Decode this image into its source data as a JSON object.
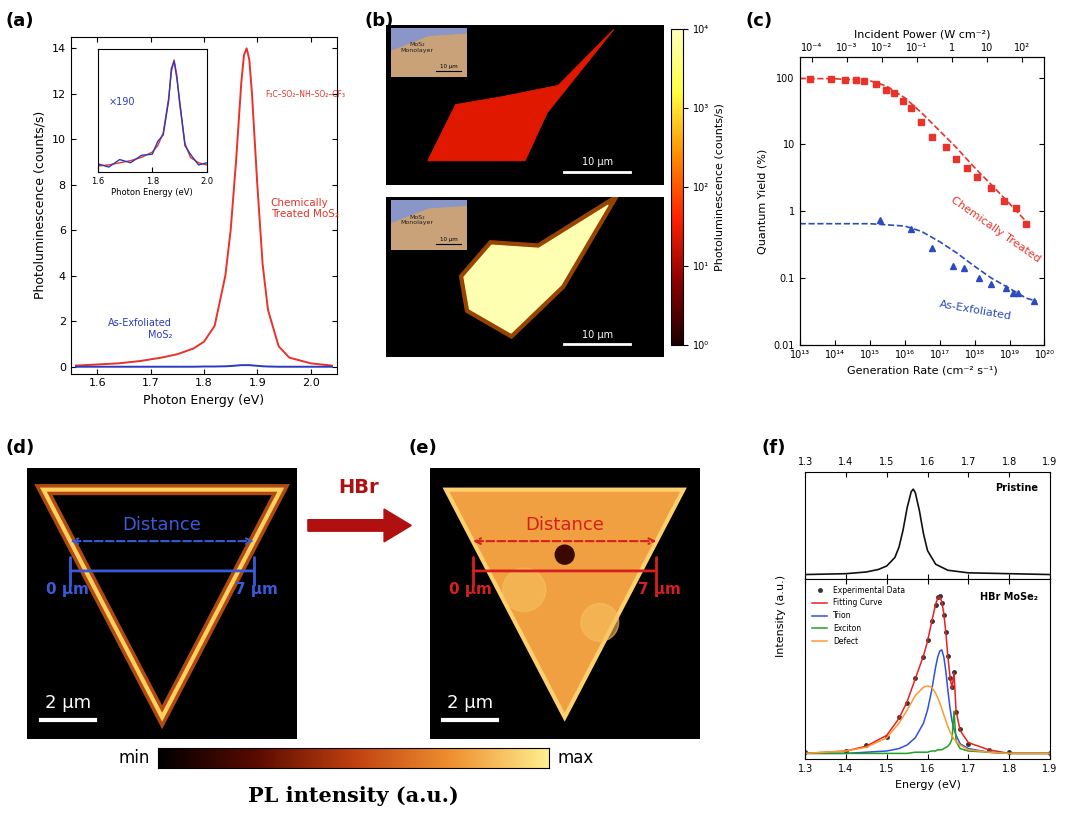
{
  "chart_data": [
    {
      "type": "line",
      "title": "(a)",
      "xlabel": "Photon Energy (eV)",
      "ylabel": "Photoluminescence (counts/s)",
      "x": [
        1.56,
        1.6,
        1.64,
        1.68,
        1.72,
        1.75,
        1.78,
        1.8,
        1.82,
        1.84,
        1.85,
        1.86,
        1.87,
        1.875,
        1.88,
        1.885,
        1.89,
        1.9,
        1.91,
        1.92,
        1.94,
        1.96,
        2.0,
        2.04
      ],
      "series": [
        {
          "name": "Chemically\nTreated MoS₂",
          "color": "#e8322a",
          "values": [
            0.05,
            0.1,
            0.15,
            0.25,
            0.4,
            0.55,
            0.8,
            1.1,
            1.8,
            4.0,
            6.0,
            9.0,
            12.5,
            13.7,
            14.0,
            13.5,
            12.0,
            8.0,
            4.5,
            2.5,
            0.9,
            0.4,
            0.15,
            0.05
          ]
        },
        {
          "name": "As-Exfoliated\nMoS₂",
          "color": "#2b3bbf",
          "values": [
            0.0,
            0.0,
            0.0,
            0.0,
            0.0,
            0.0,
            0.0,
            0.01,
            0.01,
            0.02,
            0.03,
            0.05,
            0.07,
            0.07,
            0.07,
            0.07,
            0.06,
            0.04,
            0.02,
            0.01,
            0.0,
            0.0,
            0.0,
            0.0
          ]
        }
      ],
      "annotations": [
        "F₃C–SO₂–NH–SO₂–CF₃"
      ],
      "xlim": [
        1.55,
        2.05
      ],
      "xticks": [
        1.6,
        1.7,
        1.8,
        1.9,
        2.0
      ],
      "ylim": [
        -0.3,
        14.5
      ],
      "yticks": [
        0,
        2,
        4,
        6,
        8,
        10,
        12,
        14
      ]
    },
    {
      "type": "line",
      "xlabel": "Photon Energy (eV)",
      "x": [
        1.6,
        1.64,
        1.68,
        1.72,
        1.76,
        1.8,
        1.82,
        1.84,
        1.86,
        1.87,
        1.88,
        1.89,
        1.9,
        1.92,
        1.94,
        1.97,
        2.0
      ],
      "series": [
        {
          "color": "#e8322a",
          "values": [
            0.01,
            0.02,
            0.04,
            0.06,
            0.09,
            0.14,
            0.2,
            0.32,
            0.64,
            0.89,
            1.0,
            0.86,
            0.6,
            0.22,
            0.09,
            0.04,
            0.02
          ]
        },
        {
          "color": "#2b3bbf",
          "values": [
            0.03,
            0.0,
            0.07,
            0.04,
            0.11,
            0.12,
            0.24,
            0.3,
            0.62,
            0.92,
            0.99,
            0.83,
            0.63,
            0.2,
            0.12,
            0.02,
            0.04
          ]
        }
      ],
      "annotations": [
        "×190"
      ],
      "xlim": [
        1.6,
        2.0
      ],
      "xticks": [
        1.6,
        1.8,
        2.0
      ],
      "ylim": [
        -0.05,
        1.1
      ],
      "tick_labels": "x"
    },
    {
      "type": "image_map",
      "title": "(b)",
      "colorbar": {
        "label": "Photoluminescence (counts/s)",
        "log": true,
        "lim": [
          1,
          10000
        ],
        "ticks": [
          {
            "value": 1,
            "label": "10⁰"
          },
          {
            "value": 10,
            "label": "10¹"
          },
          {
            "value": 100,
            "label": "10²"
          },
          {
            "value": 1000,
            "label": "10³"
          },
          {
            "value": 10000,
            "label": "10⁴"
          }
        ]
      },
      "images": [
        {
          "value": 25,
          "scale_bar": "10 µm",
          "inset_label": "MoS₂\nMonolayer",
          "inset_scale_bar": "10 µm"
        },
        {
          "value": 8000,
          "scale_bar": "10 µm",
          "inset_label": "MoS₂\nMonolayer",
          "inset_scale_bar": "10 µm"
        }
      ]
    },
    {
      "type": "scatter",
      "title": "(c)",
      "log": true,
      "xlabel": "Generation Rate (cm⁻² s⁻¹)",
      "ylabel": "Quantum Yield (%)",
      "x2label": "Incident Power (W cm⁻²)",
      "xlim": [
        10000000000000.0,
        1e+20
      ],
      "xticks": [
        {
          "value": 10000000000000.0,
          "label": "10¹³"
        },
        {
          "value": 100000000000000.0,
          "label": "10¹⁴"
        },
        {
          "value": 1000000000000000.0,
          "label": "10¹⁵"
        },
        {
          "value": 1e+16,
          "label": "10¹⁶"
        },
        {
          "value": 1e+17,
          "label": "10¹⁷"
        },
        {
          "value": 1e+18,
          "label": "10¹⁸"
        },
        {
          "value": 1e+19,
          "label": "10¹⁹"
        },
        {
          "value": 1e+20,
          "label": "10²⁰"
        }
      ],
      "x2lim": [
        4.5e-05,
        450
      ],
      "x2ticks": [
        {
          "value": 0.0001,
          "label": "10⁻⁴"
        },
        {
          "value": 0.001,
          "label": "10⁻³"
        },
        {
          "value": 0.01,
          "label": "10⁻²"
        },
        {
          "value": 0.1,
          "label": "10⁻¹"
        },
        1,
        10,
        {
          "value": 100,
          "label": "10²"
        }
      ],
      "ylim": [
        0.01,
        200
      ],
      "yticks": [
        0.01,
        0.1,
        1,
        10,
        100
      ],
      "series": [
        {
          "name": "Chemically Treated",
          "type": "scatter",
          "marker": "square",
          "color": "#e8322a",
          "x": [
            20000000000000.0,
            80000000000000.0,
            200000000000000.0,
            400000000000000.0,
            700000000000000.0,
            1500000000000000.0,
            3000000000000000.0,
            5000000000000000.0,
            9000000000000000.0,
            1.5e+16,
            3e+16,
            6e+16,
            1.5e+17,
            3e+17,
            6e+17,
            1.2e+18,
            3e+18,
            7e+18,
            1.5e+19,
            3e+19
          ],
          "values": [
            95,
            95,
            93,
            92,
            90,
            80,
            65,
            58,
            45,
            35,
            22,
            13,
            9,
            6,
            4.5,
            3.3,
            2.2,
            1.4,
            1.1,
            0.65
          ]
        },
        {
          "name": "As-Exfoliated",
          "type": "scatter",
          "marker": "triangle",
          "color": "#2b4bbf",
          "x": [
            2000000000000000.0,
            1.5e+16,
            6e+16,
            2.5e+17,
            5e+17,
            1.3e+18,
            3e+18,
            8e+18,
            1.3e+19,
            1.8e+19,
            5e+19
          ],
          "values": [
            0.75,
            0.55,
            0.28,
            0.15,
            0.14,
            0.1,
            0.08,
            0.07,
            0.06,
            0.06,
            0.045
          ]
        },
        {
          "type": "line",
          "line_style": "dashed",
          "color": "#e8322a",
          "x": [
            10000000000000.0,
            100000000000000.0,
            1000000000000000.0,
            3000000000000000.0,
            1e+16,
            3e+16,
            1e+17,
            3e+17,
            1e+18,
            3e+18,
            1e+19,
            3e+19
          ],
          "values": [
            97,
            96,
            90,
            75,
            50,
            30,
            16,
            9,
            4.5,
            2.5,
            1.3,
            0.7
          ]
        },
        {
          "type": "line",
          "line_style": "dashed",
          "color": "#2b4bbf",
          "x": [
            10000000000000.0,
            1000000000000000.0,
            1e+16,
            3e+16,
            1e+17,
            3e+17,
            1e+18,
            3e+18,
            1e+19,
            3e+19,
            6e+19
          ],
          "values": [
            0.65,
            0.65,
            0.6,
            0.5,
            0.35,
            0.24,
            0.15,
            0.1,
            0.07,
            0.05,
            0.045
          ]
        }
      ]
    },
    {
      "type": "image_map",
      "title": "(d)",
      "color": "#3a5bd9",
      "distance": {
        "label": "Distance",
        "start": {
          "value": 0,
          "label": "0 µm"
        },
        "end": {
          "value": 7,
          "label": "7 µm"
        }
      },
      "scale_bar": {
        "value": 2,
        "label": "2 µm"
      }
    },
    {
      "type": "image_map",
      "title": "(e)",
      "color": "#d62020",
      "arrow_label": "HBr",
      "distance": {
        "label": "Distance",
        "start": {
          "value": 0,
          "label": "0 µm"
        },
        "end": {
          "value": 7,
          "label": "7 µm"
        }
      },
      "scale_bar": {
        "value": 2,
        "label": "2 µm"
      }
    },
    {
      "type": "colorbar",
      "label": "PL intensity (a.u.)",
      "end_labels": [
        "min",
        "max"
      ]
    },
    {
      "type": "line",
      "title": "(f)",
      "ylabel": "Intensity (a.u.)",
      "panels": [
        {
          "annotations": [
            "Pristine"
          ],
          "x": [
            1.3,
            1.4,
            1.45,
            1.48,
            1.5,
            1.52,
            1.53,
            1.54,
            1.55,
            1.56,
            1.565,
            1.57,
            1.58,
            1.59,
            1.6,
            1.62,
            1.65,
            1.7,
            1.8,
            1.9
          ],
          "series": [
            {
              "color": "#111111",
              "values": [
                0.0,
                0.01,
                0.03,
                0.06,
                0.1,
                0.2,
                0.32,
                0.52,
                0.78,
                0.97,
                1.0,
                0.96,
                0.75,
                0.48,
                0.28,
                0.12,
                0.05,
                0.02,
                0.01,
                0.0
              ]
            }
          ],
          "xlim": [
            1.3,
            1.9
          ],
          "xticks": [
            1.3,
            1.4,
            1.5,
            1.6,
            1.7,
            1.8,
            1.9
          ],
          "ylim": [
            -0.05,
            1.2
          ],
          "tick_labels": "x"
        },
        {
          "annotations": [
            "HBr MoSe₂"
          ],
          "xlabel": "Energy (eV)",
          "legend": "upper left",
          "x": [
            1.3,
            1.4,
            1.45,
            1.5,
            1.53,
            1.55,
            1.57,
            1.59,
            1.6,
            1.61,
            1.62,
            1.625,
            1.63,
            1.635,
            1.64,
            1.645,
            1.65,
            1.655,
            1.66,
            1.665,
            1.67,
            1.68,
            1.7,
            1.75,
            1.8,
            1.9
          ],
          "series": [
            {
              "name": "Experimental Data",
              "type": "scatter",
              "marker": "circle",
              "color": "#333333",
              "values": [
                0.01,
                0.02,
                0.07,
                0.14,
                0.3,
                0.42,
                0.63,
                0.8,
                0.94,
                1.1,
                1.23,
                1.3,
                1.31,
                1.25,
                1.15,
                1.01,
                0.81,
                0.63,
                0.55,
                0.68,
                0.34,
                0.2,
                0.08,
                0.03,
                0.01,
                0.0
              ]
            },
            {
              "name": "Fitting Curve",
              "type": "line",
              "color": "#e82020",
              "values": [
                0,
                0.02,
                0.06,
                0.15,
                0.29,
                0.43,
                0.62,
                0.81,
                0.93,
                1.09,
                1.24,
                1.29,
                1.3,
                1.26,
                1.16,
                1.0,
                0.8,
                0.64,
                0.54,
                0.67,
                0.35,
                0.19,
                0.09,
                0.03,
                0,
                0
              ]
            },
            {
              "name": "Trion",
              "type": "line",
              "color": "#3050e0",
              "values": [
                0.0,
                0.0,
                0.01,
                0.02,
                0.04,
                0.07,
                0.13,
                0.25,
                0.36,
                0.52,
                0.72,
                0.8,
                0.85,
                0.86,
                0.8,
                0.68,
                0.52,
                0.38,
                0.27,
                0.2,
                0.15,
                0.08,
                0.04,
                0.01,
                0.0,
                0.0
              ]
            },
            {
              "name": "Exciton",
              "type": "line",
              "color": "#20a020",
              "values": [
                0,
                0,
                0,
                0,
                0,
                0,
                0.01,
                0.01,
                0.01,
                0.02,
                0.02,
                0.03,
                0.03,
                0.03,
                0.04,
                0.05,
                0.06,
                0.08,
                0.12,
                0.35,
                0.1,
                0.04,
                0.02,
                0.01,
                0,
                0
              ]
            },
            {
              "name": "Defect",
              "type": "line",
              "color": "#ff9a30",
              "values": [
                0.0,
                0.02,
                0.05,
                0.13,
                0.25,
                0.36,
                0.48,
                0.55,
                0.56,
                0.55,
                0.5,
                0.46,
                0.42,
                0.37,
                0.32,
                0.27,
                0.22,
                0.18,
                0.15,
                0.12,
                0.1,
                0.07,
                0.03,
                0.01,
                0.0,
                0.0
              ]
            }
          ],
          "xlim": [
            1.3,
            1.9
          ],
          "xticks": [
            1.3,
            1.4,
            1.5,
            1.6,
            1.7,
            1.8,
            1.9
          ],
          "ylim": [
            -0.05,
            1.45
          ],
          "tick_labels": "x"
        }
      ]
    }
  ]
}
